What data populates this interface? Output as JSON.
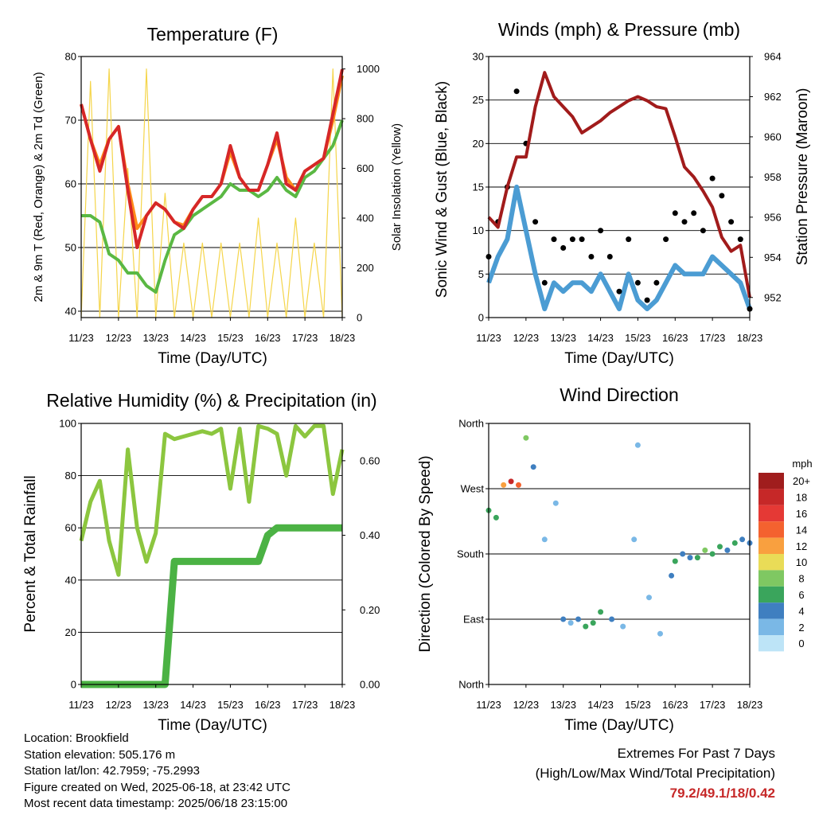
{
  "panels": {
    "temperature": {
      "title": "Temperature (F)",
      "xlabel": "Time (Day/UTC)",
      "ylabel_left": "2m & 9m T (Red, Orange) & 2m Td (Green)",
      "ylabel_right": "Solar Insolation (Yellow)"
    },
    "winds": {
      "title": "Winds (mph) & Pressure (mb)",
      "xlabel": "Time (Day/UTC)",
      "ylabel_left": "Sonic Wind & Gust (Blue, Black)",
      "ylabel_right": "Station Pressure (Maroon)"
    },
    "humidity": {
      "title": "Relative Humidity (%) & Precipitation (in)",
      "xlabel": "Time (Day/UTC)",
      "ylabel_left": "Percent & Total Rainfall"
    },
    "direction": {
      "title": "Wind Direction",
      "xlabel": "Time (Day/UTC)",
      "ylabel_left": "Direction (Colored By Speed)",
      "colorbar_unit": "mph",
      "colorbar_labels": [
        "20+",
        "18",
        "16",
        "14",
        "12",
        "10",
        "8",
        "6",
        "4",
        "2",
        "0"
      ],
      "colorbar_colors": [
        "#a01d1d",
        "#c62828",
        "#e53935",
        "#f4622f",
        "#f9a03f",
        "#e9dc57",
        "#7fc862",
        "#3aa55c",
        "#3f7fc0",
        "#7ab8e6",
        "#bde4f7"
      ]
    }
  },
  "x_tick_labels": [
    "11/23",
    "12/23",
    "13/23",
    "14/23",
    "15/23",
    "16/23",
    "17/23",
    "18/23"
  ],
  "info": {
    "location": "Location: Brookfield",
    "elevation": "Station elevation: 505.176 m",
    "latlon": "Station lat/lon: 42.7959; -75.2993",
    "created": "Figure created on Wed, 2025-06-18, at 23:42 UTC",
    "timestamp": "Most recent data timestamp: 2025/06/18 23:15:00"
  },
  "extremes": {
    "heading": "Extremes For Past 7 Days",
    "subheading": "(High/Low/Max Wind/Total Precipitation)",
    "values": "79.2/49.1/18/0.42"
  },
  "chart_data": [
    {
      "type": "line",
      "title": "Temperature (F)",
      "xlabel": "Time (Day/UTC)",
      "ylabel": "2m & 9m T (Red, Orange) & 2m Td (Green)",
      "ylabel_right": "Solar Insolation (Yellow)",
      "x": [
        11.0,
        11.25,
        11.5,
        11.75,
        12.0,
        12.25,
        12.5,
        12.75,
        13.0,
        13.25,
        13.5,
        13.75,
        14.0,
        14.25,
        14.5,
        14.75,
        15.0,
        15.25,
        15.5,
        15.75,
        16.0,
        16.25,
        16.5,
        16.75,
        17.0,
        17.25,
        17.5,
        17.75,
        18.0
      ],
      "ylim": [
        39,
        80
      ],
      "yticks": [
        40,
        50,
        60,
        70,
        80
      ],
      "ylim_right": [
        0,
        1050
      ],
      "yticks_right": [
        0,
        200,
        400,
        600,
        800,
        1000
      ],
      "series": [
        {
          "name": "2m T",
          "color": "#d62728",
          "axis": "left",
          "values": [
            72.5,
            67,
            62,
            67,
            69,
            59,
            50,
            55,
            57,
            56,
            54,
            53,
            56,
            58,
            58,
            60,
            66,
            61,
            59,
            59,
            63,
            68,
            60,
            59,
            62,
            63,
            64,
            71,
            78
          ]
        },
        {
          "name": "9m T",
          "color": "#ff8c1a",
          "axis": "left",
          "values": [
            72.5,
            67,
            63,
            67,
            69,
            60,
            53,
            55,
            57,
            56,
            54,
            53.5,
            56,
            58,
            58,
            60,
            65,
            61,
            59,
            59,
            63,
            67,
            61,
            59,
            62,
            63,
            64,
            70,
            77
          ]
        },
        {
          "name": "2m Td",
          "color": "#5ab843",
          "axis": "left",
          "values": [
            55,
            55,
            54,
            49,
            48,
            46,
            46,
            44,
            43,
            48,
            52,
            53,
            55,
            56,
            57,
            58,
            60,
            59,
            59,
            58,
            59,
            61,
            59,
            58,
            61,
            62,
            64,
            66,
            70
          ]
        },
        {
          "name": "Solar Insolation",
          "color": "#f5d54a",
          "axis": "right",
          "values": [
            0,
            950,
            0,
            1000,
            0,
            600,
            0,
            1000,
            0,
            500,
            0,
            300,
            0,
            300,
            0,
            300,
            0,
            300,
            0,
            400,
            0,
            300,
            0,
            400,
            0,
            300,
            0,
            1000,
            0
          ]
        }
      ]
    },
    {
      "type": "line",
      "title": "Winds (mph) & Pressure (mb)",
      "xlabel": "Time (Day/UTC)",
      "ylabel": "Sonic Wind & Gust (Blue, Black)",
      "ylabel_right": "Station Pressure (Maroon)",
      "x": [
        11.0,
        11.25,
        11.5,
        11.75,
        12.0,
        12.25,
        12.5,
        12.75,
        13.0,
        13.25,
        13.5,
        13.75,
        14.0,
        14.25,
        14.5,
        14.75,
        15.0,
        15.25,
        15.5,
        15.75,
        16.0,
        16.25,
        16.5,
        16.75,
        17.0,
        17.25,
        17.5,
        17.75,
        18.0
      ],
      "ylim": [
        0,
        30
      ],
      "yticks": [
        0,
        5,
        10,
        15,
        20,
        25,
        30
      ],
      "ylim_right": [
        951,
        964
      ],
      "yticks_right": [
        952,
        954,
        956,
        958,
        960,
        962,
        964
      ],
      "series": [
        {
          "name": "Sonic Wind",
          "color": "#4b9cd3",
          "axis": "left",
          "values": [
            4,
            7,
            9,
            15,
            10,
            5,
            1,
            4,
            3,
            4,
            4,
            3,
            5,
            3,
            1,
            5,
            2,
            1,
            2,
            4,
            6,
            5,
            5,
            5,
            7,
            6,
            5,
            4,
            1
          ]
        },
        {
          "name": "Gust",
          "color": "#000000",
          "axis": "left",
          "values": [
            7,
            11,
            15,
            26,
            20,
            11,
            4,
            9,
            8,
            9,
            9,
            7,
            10,
            7,
            3,
            9,
            4,
            2,
            4,
            9,
            12,
            11,
            12,
            10,
            16,
            14,
            11,
            9,
            1
          ]
        },
        {
          "name": "Station Pressure",
          "color": "#a11b1b",
          "axis": "right",
          "values": [
            956,
            955.5,
            957.5,
            959,
            959,
            961.5,
            963.2,
            962.0,
            961.5,
            961.0,
            960.2,
            960.5,
            960.8,
            961.2,
            961.5,
            961.8,
            962.0,
            961.8,
            961.5,
            961.4,
            960.0,
            958.5,
            958.0,
            957.3,
            956.5,
            955.0,
            954.3,
            954.6,
            952
          ]
        }
      ]
    },
    {
      "type": "line",
      "title": "Relative Humidity (%) & Precipitation (in)",
      "xlabel": "Time (Day/UTC)",
      "ylabel": "Percent & Total Rainfall",
      "x": [
        11.0,
        11.25,
        11.5,
        11.75,
        12.0,
        12.25,
        12.5,
        12.75,
        13.0,
        13.25,
        13.5,
        13.75,
        14.0,
        14.25,
        14.5,
        14.75,
        15.0,
        15.25,
        15.5,
        15.75,
        16.0,
        16.25,
        16.5,
        16.75,
        17.0,
        17.25,
        17.5,
        17.75,
        18.0
      ],
      "ylim": [
        0,
        100
      ],
      "yticks": [
        0,
        20,
        40,
        60,
        80,
        100
      ],
      "ylim_right": [
        0,
        0.7
      ],
      "yticks_right": [
        0.0,
        0.2,
        0.4,
        0.6
      ],
      "series": [
        {
          "name": "Relative Humidity",
          "color": "#8cc63f",
          "axis": "left",
          "values": [
            55,
            70,
            78,
            55,
            42,
            90,
            60,
            47,
            58,
            96,
            94,
            95,
            96,
            97,
            96,
            98,
            75,
            98,
            70,
            99,
            98,
            96,
            80,
            99,
            95,
            99,
            99,
            73,
            90
          ]
        },
        {
          "name": "Total Precipitation",
          "color": "#4bb244",
          "axis": "right",
          "values": [
            0,
            0,
            0,
            0,
            0,
            0,
            0,
            0,
            0,
            0,
            0.33,
            0.33,
            0.33,
            0.33,
            0.33,
            0.33,
            0.33,
            0.33,
            0.33,
            0.33,
            0.4,
            0.42,
            0.42,
            0.42,
            0.42,
            0.42,
            0.42,
            0.42,
            0.42
          ]
        }
      ]
    },
    {
      "type": "scatter",
      "title": "Wind Direction",
      "xlabel": "Time (Day/UTC)",
      "ylabel": "Direction (Colored By Speed)",
      "ytick_labels": [
        "North",
        "East",
        "South",
        "West",
        "North"
      ],
      "ylim": [
        0,
        360
      ],
      "x": [
        11.0,
        11.2,
        11.4,
        11.6,
        11.8,
        12.0,
        12.2,
        12.5,
        12.8,
        13.0,
        13.2,
        13.4,
        13.6,
        13.8,
        14.0,
        14.3,
        14.6,
        14.9,
        15.0,
        15.3,
        15.6,
        15.9,
        16.0,
        16.2,
        16.4,
        16.6,
        16.8,
        17.0,
        17.2,
        17.4,
        17.6,
        17.8,
        18.0
      ],
      "values": [
        240,
        230,
        275,
        280,
        275,
        340,
        300,
        200,
        250,
        90,
        85,
        90,
        80,
        85,
        100,
        90,
        80,
        200,
        330,
        120,
        70,
        150,
        170,
        180,
        175,
        175,
        185,
        180,
        190,
        185,
        195,
        200,
        195
      ],
      "speed": [
        6,
        6,
        12,
        18,
        14,
        8,
        4,
        2,
        2,
        4,
        2,
        4,
        6,
        6,
        6,
        4,
        2,
        2,
        2,
        2,
        2,
        4,
        6,
        4,
        4,
        6,
        8,
        6,
        6,
        4,
        6,
        4,
        4
      ]
    }
  ]
}
